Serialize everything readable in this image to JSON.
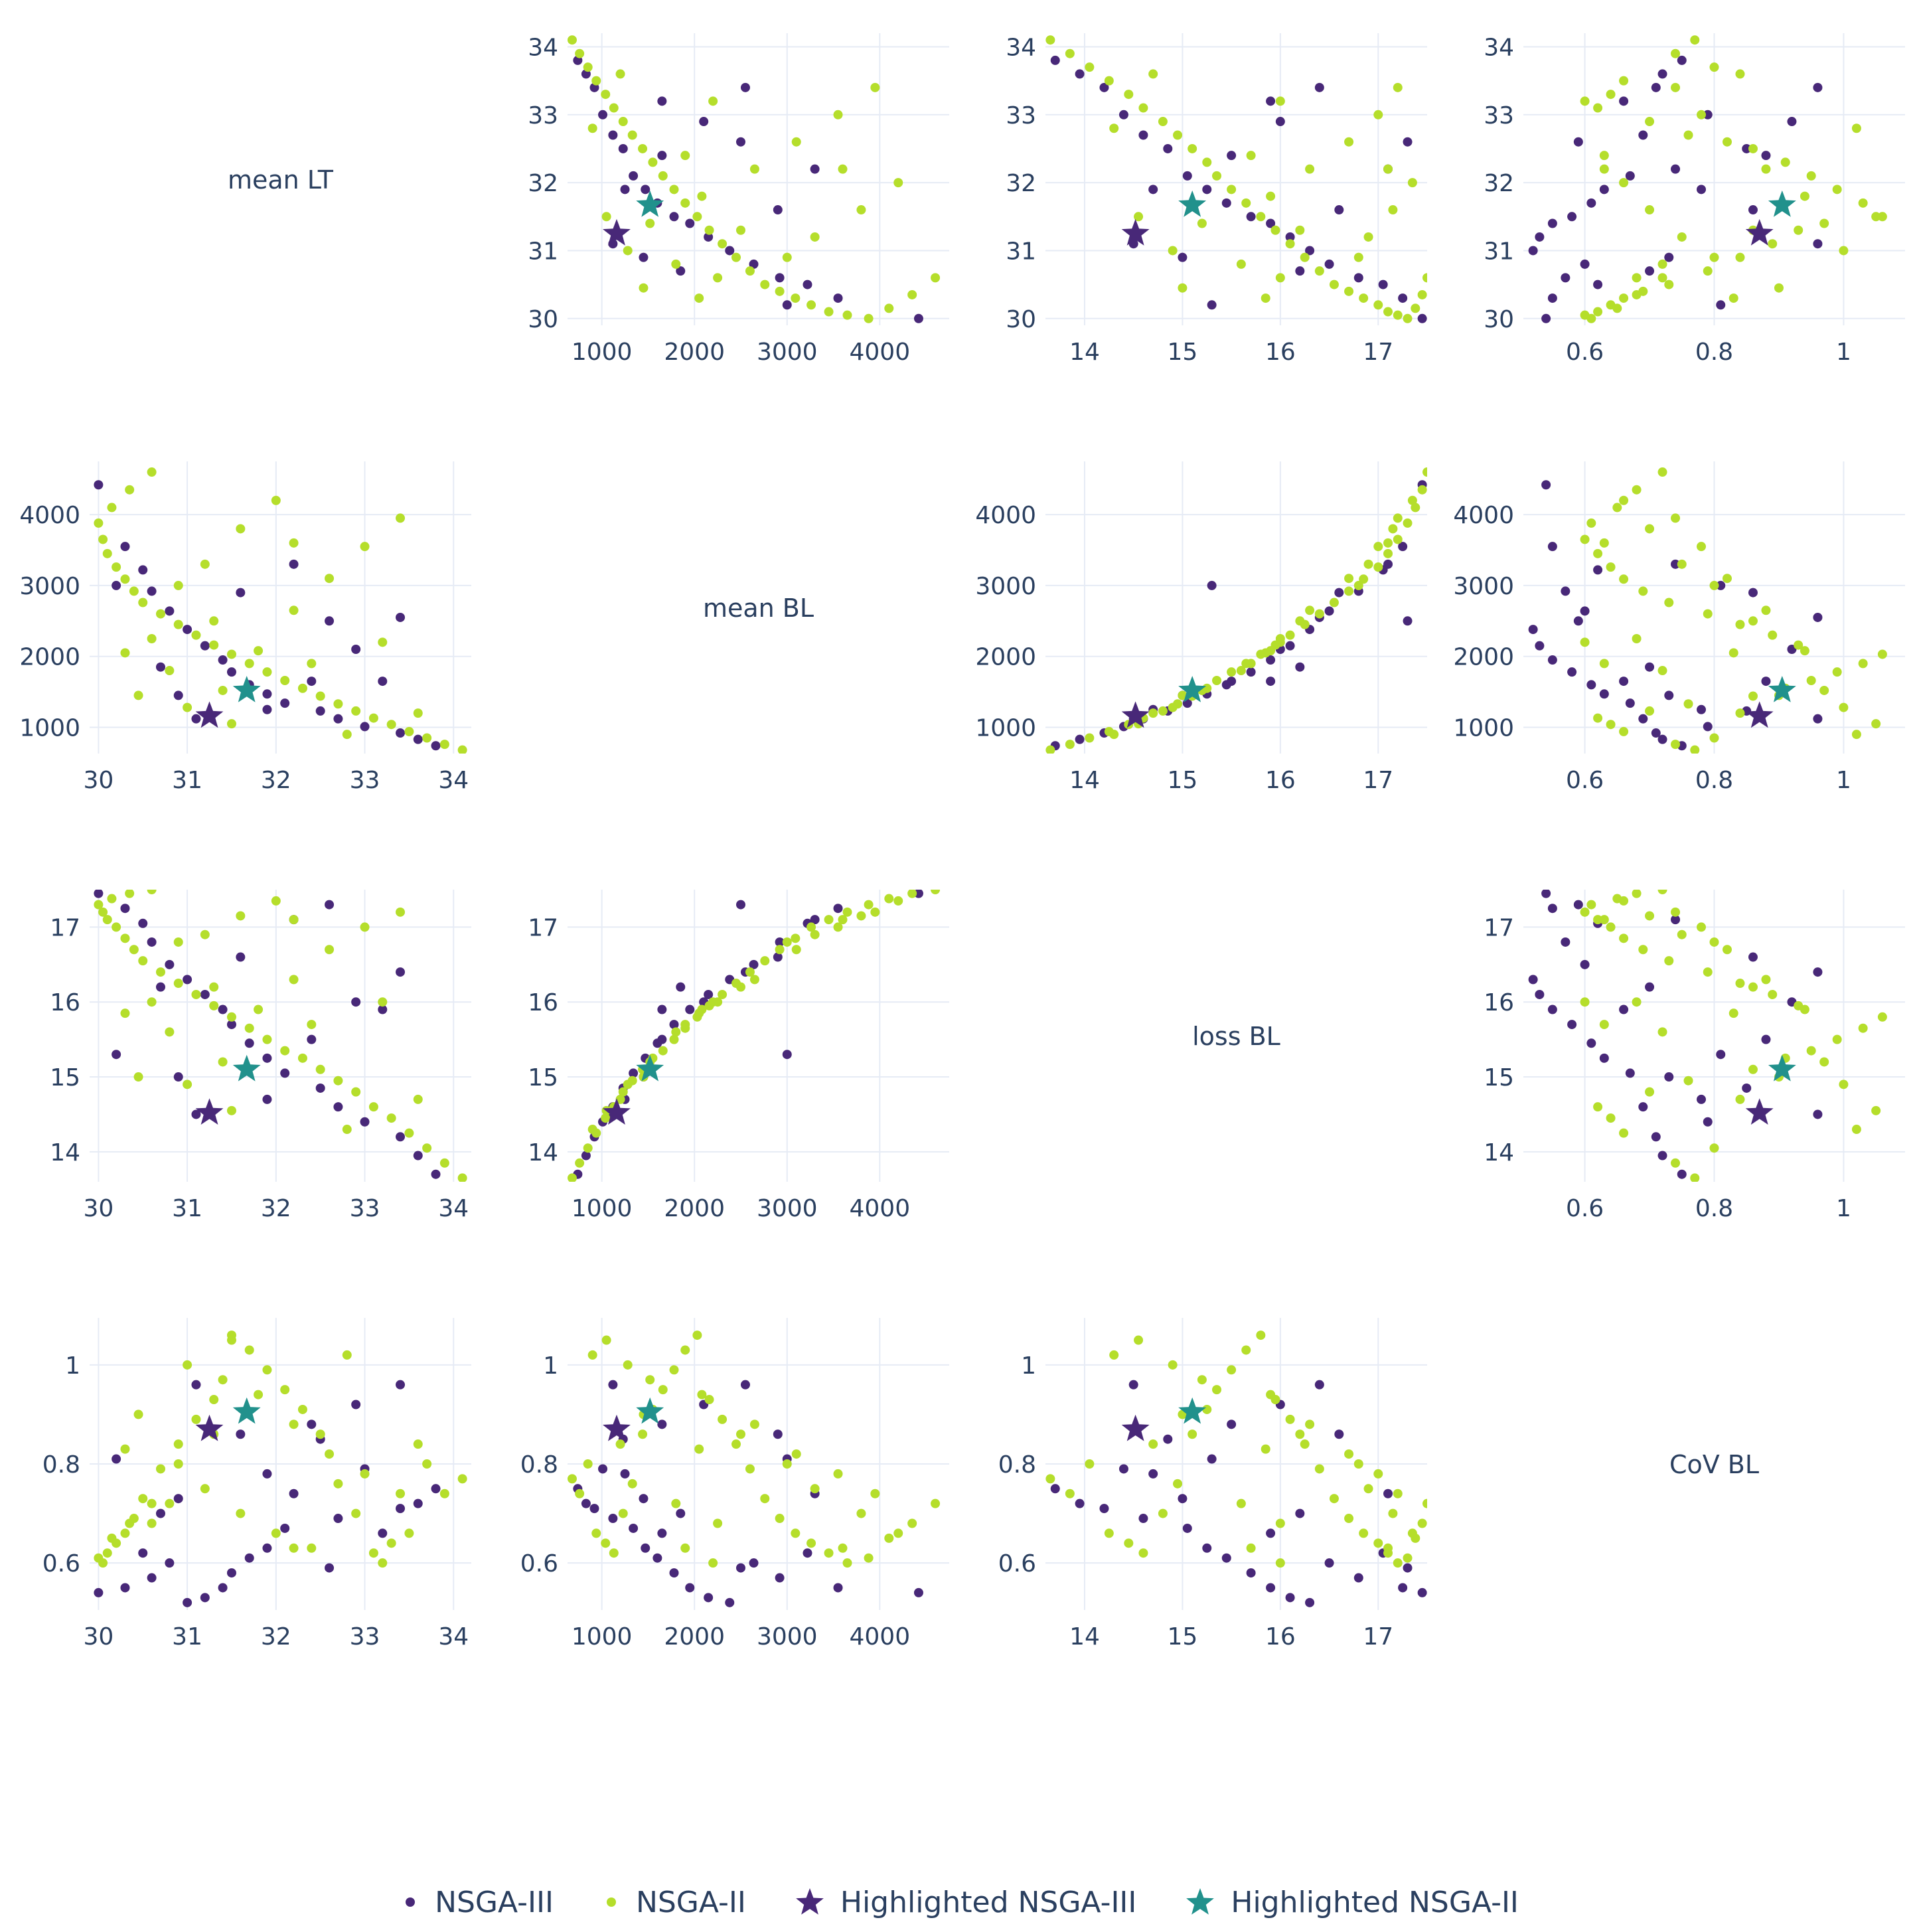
{
  "chart_data": {
    "type": "scatter",
    "layout": "scatter-matrix",
    "variables": [
      "mean LT",
      "mean BL",
      "loss BL",
      "CoV BL"
    ],
    "ranges": {
      "mean LT": [
        29.9,
        34.2
      ],
      "mean BL": [
        630,
        4750
      ],
      "loss BL": [
        13.6,
        17.5
      ],
      "CoV BL": [
        0.505,
        1.095
      ]
    },
    "ticks": {
      "mean LT": [
        30,
        31,
        32,
        33,
        34
      ],
      "mean BL": [
        1000,
        2000,
        3000,
        4000
      ],
      "loss BL": [
        14,
        15,
        16,
        17
      ],
      "CoV BL": [
        0.6,
        0.8,
        1
      ]
    },
    "tick_labels": {
      "mean LT": [
        "30",
        "31",
        "32",
        "33",
        "34"
      ],
      "mean BL": [
        "1000",
        "2000",
        "3000",
        "4000"
      ],
      "loss BL": [
        "14",
        "15",
        "16",
        "17"
      ],
      "CoV BL": [
        "0.6",
        "0.8",
        "1"
      ]
    },
    "grid": true,
    "legend_position": "bottom-center",
    "series": [
      {
        "name": "NSGA-III",
        "marker": "dot",
        "color": "#482878",
        "columns": [
          "mean LT",
          "mean BL",
          "loss BL",
          "CoV BL"
        ],
        "points": [
          [
            33.8,
            740,
            13.7,
            0.75
          ],
          [
            33.6,
            830,
            13.95,
            0.72
          ],
          [
            33.4,
            920,
            14.2,
            0.71
          ],
          [
            33.0,
            1010,
            14.4,
            0.79
          ],
          [
            32.7,
            1120,
            14.6,
            0.69
          ],
          [
            32.5,
            1230,
            14.85,
            0.85
          ],
          [
            32.1,
            1340,
            15.05,
            0.67
          ],
          [
            31.9,
            1470,
            15.25,
            0.63
          ],
          [
            31.7,
            1600,
            15.45,
            0.61
          ],
          [
            31.5,
            1780,
            15.7,
            0.58
          ],
          [
            31.4,
            1950,
            15.9,
            0.55
          ],
          [
            31.2,
            2150,
            16.1,
            0.53
          ],
          [
            31.0,
            2380,
            16.3,
            0.52
          ],
          [
            30.8,
            2640,
            16.5,
            0.6
          ],
          [
            30.6,
            2920,
            16.8,
            0.57
          ],
          [
            30.5,
            3220,
            17.05,
            0.62
          ],
          [
            30.3,
            3550,
            17.25,
            0.55
          ],
          [
            30.0,
            4420,
            17.45,
            0.54
          ],
          [
            31.9,
            1250,
            14.7,
            0.78
          ],
          [
            32.4,
            1650,
            15.5,
            0.88
          ],
          [
            32.9,
            2100,
            16.0,
            0.92
          ],
          [
            33.4,
            2550,
            16.4,
            0.96
          ],
          [
            30.2,
            3000,
            15.3,
            0.81
          ],
          [
            31.1,
            1120,
            14.5,
            0.96
          ],
          [
            30.7,
            1850,
            16.2,
            0.7
          ],
          [
            31.6,
            2900,
            16.6,
            0.86
          ],
          [
            32.2,
            3300,
            17.1,
            0.74
          ],
          [
            30.9,
            1450,
            15.0,
            0.73
          ],
          [
            33.2,
            1650,
            15.9,
            0.66
          ],
          [
            32.6,
            2500,
            17.3,
            0.59
          ]
        ]
      },
      {
        "name": "NSGA-II",
        "marker": "dot",
        "color": "#b5de2b",
        "columns": [
          "mean LT",
          "mean BL",
          "loss BL",
          "CoV BL"
        ],
        "points": [
          [
            34.1,
            680,
            13.65,
            0.77
          ],
          [
            33.9,
            760,
            13.85,
            0.74
          ],
          [
            33.7,
            850,
            14.05,
            0.8
          ],
          [
            33.5,
            940,
            14.25,
            0.66
          ],
          [
            33.3,
            1040,
            14.45,
            0.64
          ],
          [
            33.1,
            1130,
            14.6,
            0.62
          ],
          [
            32.9,
            1230,
            14.8,
            0.7
          ],
          [
            32.7,
            1330,
            14.95,
            0.76
          ],
          [
            32.5,
            1440,
            15.1,
            0.86
          ],
          [
            32.3,
            1550,
            15.25,
            0.91
          ],
          [
            32.1,
            1660,
            15.35,
            0.95
          ],
          [
            31.9,
            1780,
            15.5,
            0.99
          ],
          [
            31.7,
            1900,
            15.65,
            1.03
          ],
          [
            31.5,
            2030,
            15.8,
            1.06
          ],
          [
            31.3,
            2160,
            15.95,
            0.93
          ],
          [
            31.1,
            2300,
            16.1,
            0.89
          ],
          [
            30.9,
            2450,
            16.25,
            0.84
          ],
          [
            30.7,
            2600,
            16.4,
            0.79
          ],
          [
            30.5,
            2760,
            16.55,
            0.73
          ],
          [
            30.4,
            2920,
            16.7,
            0.69
          ],
          [
            30.3,
            3090,
            16.85,
            0.66
          ],
          [
            30.2,
            3260,
            17.0,
            0.64
          ],
          [
            30.1,
            3450,
            17.1,
            0.62
          ],
          [
            30.05,
            3650,
            17.2,
            0.6
          ],
          [
            30.0,
            3880,
            17.3,
            0.61
          ],
          [
            30.15,
            4100,
            17.38,
            0.65
          ],
          [
            30.35,
            4350,
            17.45,
            0.68
          ],
          [
            30.6,
            4600,
            17.5,
            0.72
          ],
          [
            31.0,
            1280,
            14.9,
            1.0
          ],
          [
            31.4,
            1520,
            15.2,
            0.97
          ],
          [
            31.8,
            2080,
            15.9,
            0.94
          ],
          [
            32.2,
            2650,
            16.3,
            0.88
          ],
          [
            32.6,
            3100,
            16.7,
            0.82
          ],
          [
            33.0,
            3550,
            17.0,
            0.78
          ],
          [
            33.4,
            3950,
            17.2,
            0.74
          ],
          [
            30.8,
            1800,
            15.6,
            0.72
          ],
          [
            30.6,
            2250,
            16.0,
            0.68
          ],
          [
            31.2,
            3300,
            16.9,
            0.75
          ],
          [
            31.6,
            3800,
            17.15,
            0.7
          ],
          [
            32.0,
            4200,
            17.35,
            0.66
          ],
          [
            32.4,
            1900,
            15.7,
            0.63
          ],
          [
            31.3,
            2500,
            16.2,
            0.86
          ],
          [
            30.45,
            1450,
            15.0,
            0.9
          ],
          [
            33.6,
            1200,
            14.7,
            0.84
          ],
          [
            32.8,
            900,
            14.3,
            1.02
          ],
          [
            31.5,
            1050,
            14.55,
            1.05
          ],
          [
            30.9,
            3000,
            16.8,
            0.8
          ],
          [
            32.2,
            3600,
            17.1,
            0.63
          ],
          [
            33.2,
            2200,
            16.0,
            0.6
          ],
          [
            30.3,
            2050,
            15.85,
            0.83
          ]
        ]
      },
      {
        "name": "Highlighted NSGA-III",
        "marker": "star",
        "color": "#482878",
        "columns": [
          "mean LT",
          "mean BL",
          "loss BL",
          "CoV BL"
        ],
        "points": [
          [
            31.25,
            1160,
            14.52,
            0.87
          ]
        ]
      },
      {
        "name": "Highlighted NSGA-II",
        "marker": "star",
        "color": "#21918c",
        "columns": [
          "mean LT",
          "mean BL",
          "loss BL",
          "CoV BL"
        ],
        "points": [
          [
            31.67,
            1520,
            15.1,
            0.905
          ]
        ]
      }
    ]
  }
}
